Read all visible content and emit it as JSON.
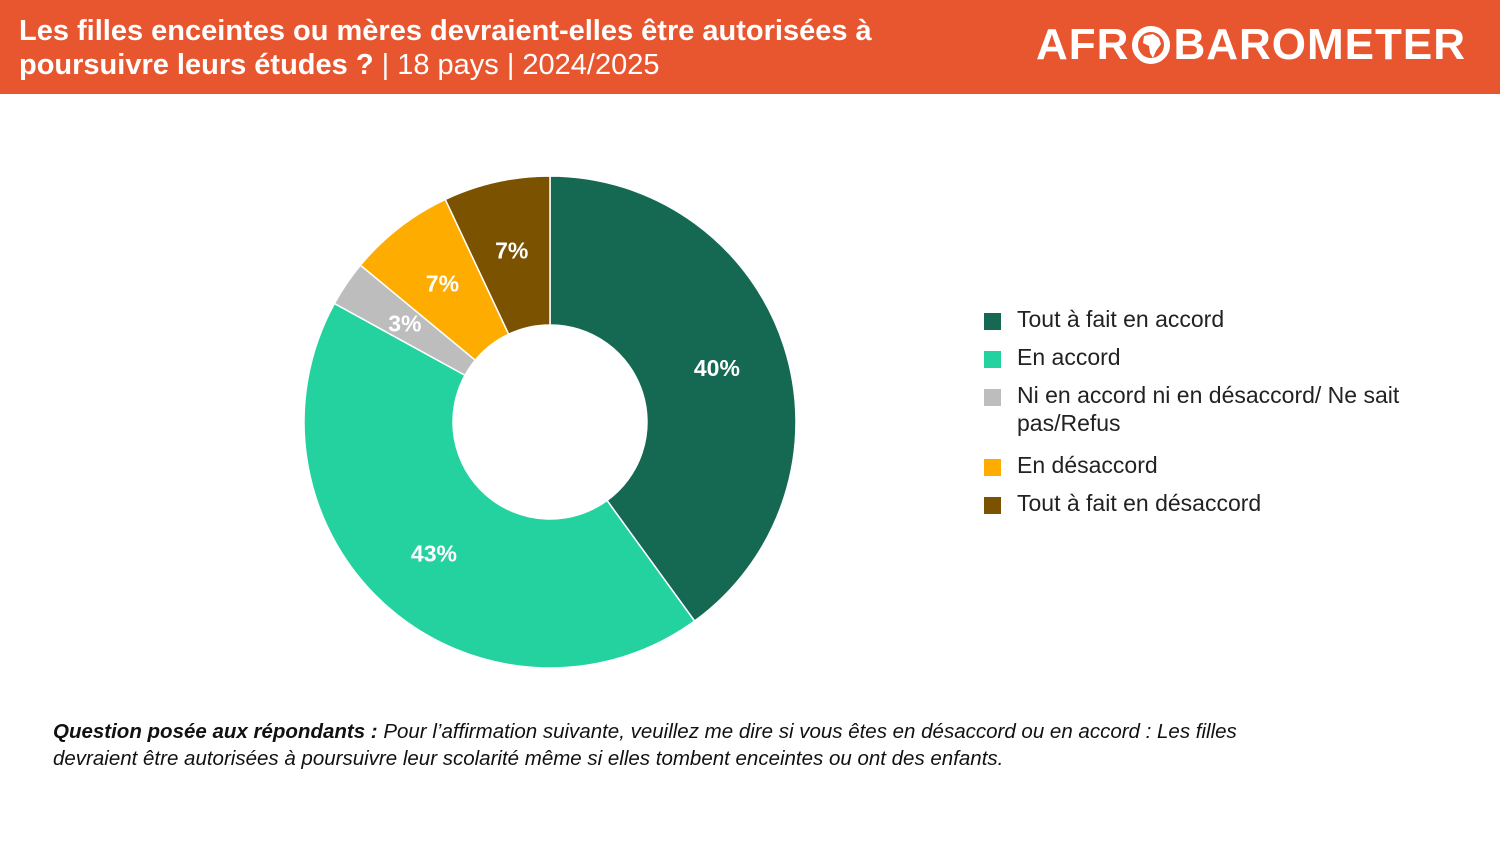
{
  "header": {
    "title_bold": "Les filles enceintes ou mères devraient-elles être autorisées à poursuivre leurs études ?",
    "title_light": " | 18 pays | 2024/2025",
    "logo_left": "AFR",
    "logo_right": "BAROMETER"
  },
  "colors": {
    "header_bg": "#E8562F",
    "strongly_agree": "#156953",
    "agree": "#24D2A0",
    "neither": "#BDBDBD",
    "disagree": "#FFAC00",
    "strongly_disagree": "#7A5200"
  },
  "chart_data": {
    "type": "pie",
    "donut": true,
    "legend_position": "right",
    "slices": [
      {
        "label": "Tout à fait en accord",
        "value": 40,
        "display": "40%",
        "color": "#156953"
      },
      {
        "label": "En accord",
        "value": 43,
        "display": "43%",
        "color": "#24D2A0"
      },
      {
        "label": "Ni en accord ni en désaccord/ Ne sait pas/Refus",
        "value": 3,
        "display": "3%",
        "color": "#BDBDBD"
      },
      {
        "label": "En désaccord",
        "value": 7,
        "display": "7%",
        "color": "#FFAC00"
      },
      {
        "label": "Tout à fait en désaccord",
        "value": 7,
        "display": "7%",
        "color": "#7A5200"
      }
    ]
  },
  "footnote": {
    "question_label": "Question posée aux répondants :",
    "question_text": " Pour l’affirmation suivante, veuillez me dire si vous êtes en désaccord ou en accord : Les filles devraient être autorisées à poursuivre leur scolarité même si elles tombent enceintes ou ont des enfants."
  }
}
